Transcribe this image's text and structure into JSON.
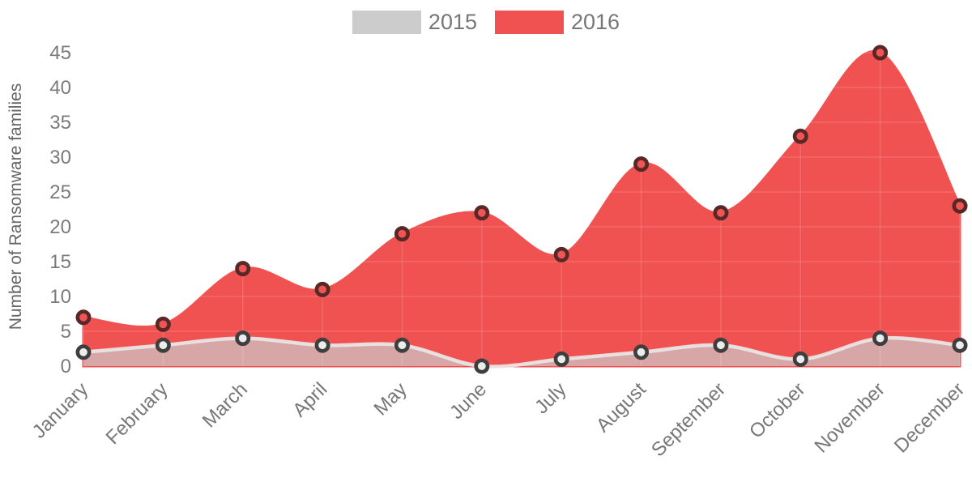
{
  "legend": {
    "items": [
      {
        "label": "2015",
        "color": "#cccccc"
      },
      {
        "label": "2016",
        "color": "#f05151"
      }
    ]
  },
  "y_axis": {
    "title": "Number of Ransomware families",
    "ticks": [
      0,
      5,
      10,
      15,
      20,
      25,
      30,
      35,
      40,
      45
    ]
  },
  "chart_data": {
    "type": "area",
    "title": "",
    "categories": [
      "January",
      "February",
      "March",
      "April",
      "May",
      "June",
      "July",
      "August",
      "September",
      "October",
      "November",
      "December"
    ],
    "series": [
      {
        "name": "2016",
        "values": [
          7,
          6,
          14,
          11,
          19,
          22,
          16,
          29,
          22,
          33,
          45,
          23
        ],
        "line_color": "#f05151",
        "fill_color": "#f05151",
        "fill_opacity": 1,
        "marker_ring": "#582827",
        "marker_fill": "#f15454"
      },
      {
        "name": "2015",
        "values": [
          2,
          3,
          4,
          3,
          3,
          0,
          1,
          2,
          3,
          1,
          4,
          3
        ],
        "line_color": "#eaeaea",
        "fill_color": "#cccccc",
        "fill_opacity": 0.7,
        "marker_ring": "#3e3e3e",
        "marker_fill": "#ececec"
      }
    ],
    "xlabel": "",
    "ylabel": "Number of Ransomware families",
    "ylim": [
      0,
      45
    ],
    "grid": true,
    "grid_color": "rgba(255,255,255,0.14)",
    "legend_position": "top"
  }
}
